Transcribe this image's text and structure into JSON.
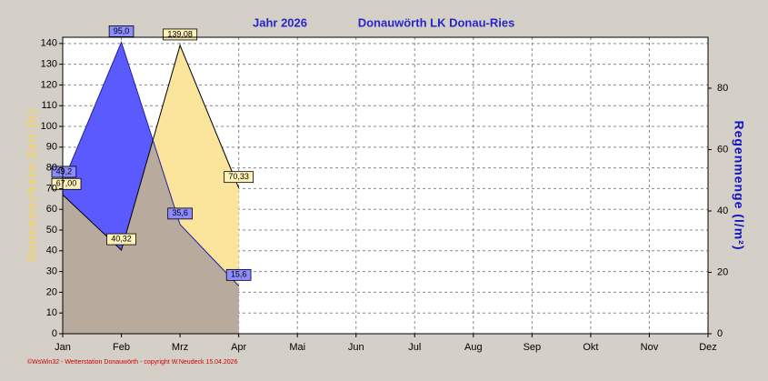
{
  "chart_data": {
    "type": "area",
    "title": "Jahr  2026",
    "subtitle": "Donauwörth LK Donau-Ries",
    "footer": "©WsWin32 - Wetterstation Donauwörth - copyright W.Neudeck 15.04.2026",
    "y_label": "Sonnenschein-Zeit  (h)",
    "y2_label": "Regenmenge  (l/m²)",
    "categories": [
      "Jan",
      "Feb",
      "Mrz",
      "Apr",
      "Mai",
      "Jun",
      "Jul",
      "Aug",
      "Sep",
      "Okt",
      "Nov",
      "Dez"
    ],
    "series": [
      {
        "name": "Sonnenschein-Zeit",
        "color": "#fbe49c",
        "axis": "y",
        "values": [
          67.0,
          40.32,
          139.08,
          70.33,
          null,
          null,
          null,
          null,
          null,
          null,
          null,
          null
        ],
        "value_labels": [
          "67,00",
          "40,32",
          "139,08",
          "70,33",
          null,
          null,
          null,
          null,
          null,
          null,
          null,
          null
        ]
      },
      {
        "name": "Regenmenge",
        "color": "#5a5aff",
        "axis": "y2",
        "values": [
          49.2,
          95.0,
          35.6,
          15.6,
          null,
          null,
          null,
          null,
          null,
          null,
          null,
          null
        ],
        "value_labels": [
          "49,2",
          "95,0",
          "35,6",
          "15,6",
          null,
          null,
          null,
          null,
          null,
          null,
          null,
          null
        ]
      }
    ],
    "ylim": [
      0,
      143
    ],
    "yticks": [
      0,
      10,
      20,
      30,
      40,
      50,
      60,
      70,
      80,
      90,
      100,
      110,
      120,
      130,
      140
    ],
    "y2lim": [
      0,
      96.6
    ],
    "y2ticks": [
      0,
      20,
      40,
      60,
      80
    ],
    "grid": true
  }
}
